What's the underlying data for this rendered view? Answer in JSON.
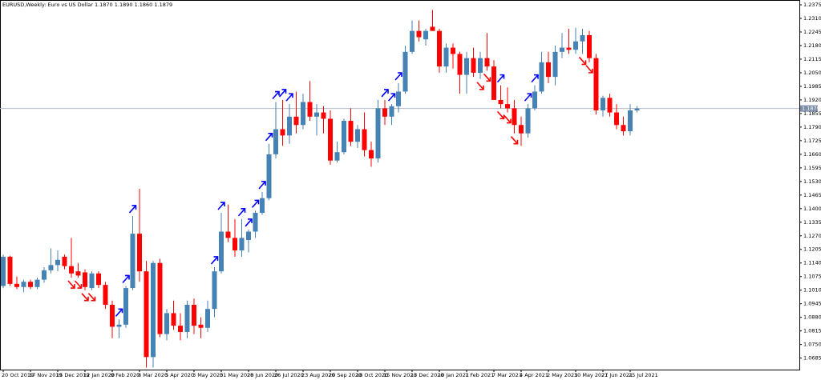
{
  "chart_data": {
    "type": "candlestick",
    "title": "EURUSD,Weekly: Euro vs US Dollar 1.1870 1.1890 1.1860 1.1879",
    "categories": [
      "20 Oct 2019",
      null,
      null,
      null,
      "17 Nov 2019",
      null,
      null,
      null,
      "15 Dec 2019",
      null,
      null,
      null,
      "12 Jan 2020",
      null,
      null,
      null,
      "9 Feb 2020",
      null,
      null,
      null,
      "8 Mar 2020",
      null,
      null,
      null,
      "5 Apr 2020",
      null,
      null,
      null,
      "3 May 2020",
      null,
      null,
      null,
      "31 May 2020",
      null,
      null,
      null,
      "28 Jun 2020",
      null,
      null,
      null,
      "26 Jul 2020",
      null,
      null,
      null,
      "23 Aug 2020",
      null,
      null,
      null,
      "20 Sep 2020",
      null,
      null,
      null,
      "18 Oct 2020",
      null,
      null,
      null,
      "15 Nov 2020",
      null,
      null,
      null,
      "13 Dec 2020",
      null,
      null,
      null,
      "10 Jan 2021",
      null,
      null,
      null,
      "7 Feb 2021",
      null,
      null,
      null,
      "7 Mar 2021",
      null,
      null,
      null,
      "4 Apr 2021",
      null,
      null,
      null,
      "2 May 2021",
      null,
      null,
      null,
      "30 May 2021",
      null,
      null,
      null,
      "27 Jun 2021",
      null,
      null,
      null,
      "25 Jul 2021",
      null
    ],
    "open": [
      1.103,
      1.117,
      1.104,
      1.1025,
      1.105,
      1.1025,
      1.106,
      1.1105,
      1.113,
      1.117,
      1.1125,
      1.11,
      1.1095,
      1.102,
      1.109,
      1.1035,
      1.094,
      1.0835,
      1.0845,
      1.102,
      1.128,
      1.11,
      1.069,
      1.114,
      1.08,
      1.09,
      1.084,
      1.081,
      1.094,
      1.0845,
      1.083,
      1.092,
      1.11,
      1.129,
      1.126,
      1.12,
      1.125,
      1.129,
      1.138,
      1.145,
      1.166,
      1.178,
      1.175,
      1.184,
      1.18,
      1.191,
      1.184,
      1.186,
      1.183,
      1.163,
      1.167,
      1.182,
      1.172,
      1.178,
      1.168,
      1.164,
      1.188,
      1.184,
      1.189,
      1.196,
      1.215,
      1.225,
      1.221,
      1.227,
      1.225,
      1.208,
      1.217,
      1.214,
      1.204,
      1.212,
      1.205,
      1.212,
      1.208,
      1.192,
      1.19,
      1.188,
      1.18,
      1.176,
      1.188,
      1.196,
      1.21,
      1.203,
      1.215,
      1.217,
      1.216,
      1.22,
      1.223,
      1.212,
      1.187,
      1.193,
      1.186,
      1.18,
      1.177,
      1.187
    ],
    "high": [
      1.118,
      1.1175,
      1.1075,
      1.106,
      1.106,
      1.107,
      1.112,
      1.121,
      1.12,
      1.118,
      1.126,
      1.114,
      1.111,
      1.11,
      1.11,
      1.105,
      1.096,
      1.087,
      1.103,
      1.1365,
      1.1495,
      1.115,
      1.115,
      1.116,
      1.092,
      1.096,
      1.09,
      1.096,
      1.097,
      1.088,
      1.096,
      1.112,
      1.138,
      1.142,
      1.135,
      1.135,
      1.13,
      1.139,
      1.148,
      1.171,
      1.191,
      1.192,
      1.19,
      1.196,
      1.195,
      1.201,
      1.19,
      1.189,
      1.187,
      1.172,
      1.183,
      1.188,
      1.18,
      1.186,
      1.172,
      1.192,
      1.192,
      1.19,
      1.2,
      1.218,
      1.23,
      1.23,
      1.226,
      1.235,
      1.226,
      1.219,
      1.219,
      1.215,
      1.215,
      1.217,
      1.215,
      1.224,
      1.211,
      1.199,
      1.198,
      1.192,
      1.184,
      1.19,
      1.199,
      1.215,
      1.215,
      1.218,
      1.224,
      1.226,
      1.2265,
      1.226,
      1.225,
      1.214,
      1.194,
      1.195,
      1.19,
      1.184,
      1.19,
      1.189
    ],
    "low": [
      1.102,
      1.103,
      1.1015,
      1.1,
      1.1015,
      1.1015,
      1.1045,
      1.109,
      1.11,
      1.111,
      1.107,
      1.107,
      1.101,
      1.101,
      1.102,
      1.092,
      1.078,
      1.078,
      1.083,
      1.101,
      1.105,
      1.064,
      1.064,
      1.0785,
      1.077,
      1.082,
      1.077,
      1.078,
      1.08,
      1.078,
      1.081,
      1.088,
      1.109,
      1.124,
      1.117,
      1.117,
      1.119,
      1.126,
      1.137,
      1.144,
      1.164,
      1.17,
      1.171,
      1.176,
      1.178,
      1.182,
      1.175,
      1.176,
      1.161,
      1.162,
      1.166,
      1.17,
      1.169,
      1.165,
      1.16,
      1.162,
      1.18,
      1.18,
      1.186,
      1.195,
      1.214,
      1.22,
      1.218,
      1.225,
      1.205,
      1.205,
      1.207,
      1.195,
      1.195,
      1.203,
      1.202,
      1.206,
      1.192,
      1.188,
      1.186,
      1.176,
      1.17,
      1.174,
      1.187,
      1.195,
      1.2,
      1.199,
      1.212,
      1.214,
      1.214,
      1.214,
      1.21,
      1.185,
      1.184,
      1.184,
      1.178,
      1.175,
      1.175,
      1.186
    ],
    "close": [
      1.117,
      1.104,
      1.1025,
      1.105,
      1.1025,
      1.106,
      1.1105,
      1.113,
      1.1155,
      1.1125,
      1.109,
      1.108,
      1.1025,
      1.109,
      1.1035,
      1.094,
      1.0835,
      1.0845,
      1.102,
      1.128,
      1.11,
      1.069,
      1.114,
      1.08,
      1.09,
      1.084,
      1.081,
      1.094,
      1.084,
      1.083,
      1.092,
      1.11,
      1.129,
      1.126,
      1.12,
      1.126,
      1.129,
      1.138,
      1.145,
      1.166,
      1.178,
      1.175,
      1.184,
      1.18,
      1.191,
      1.184,
      1.186,
      1.183,
      1.163,
      1.167,
      1.182,
      1.172,
      1.178,
      1.168,
      1.164,
      1.188,
      1.184,
      1.189,
      1.196,
      1.215,
      1.225,
      1.222,
      1.225,
      1.225,
      1.208,
      1.217,
      1.214,
      1.204,
      1.212,
      1.205,
      1.212,
      1.208,
      1.192,
      1.19,
      1.188,
      1.18,
      1.176,
      1.188,
      1.196,
      1.21,
      1.203,
      1.215,
      1.217,
      1.216,
      1.22,
      1.223,
      1.212,
      1.187,
      1.193,
      1.186,
      1.18,
      1.177,
      1.187,
      1.1879
    ],
    "up_color": "#4682b4",
    "down_color": "#ff0000",
    "up_arrows": [
      17,
      18,
      19,
      31,
      32,
      35,
      36,
      37,
      38,
      39,
      40,
      41,
      42,
      56,
      57,
      58,
      73,
      77,
      78
    ],
    "down_arrows": [
      10,
      11,
      12,
      13,
      70,
      71,
      73,
      74,
      75,
      85,
      86
    ],
    "up_arrow_color": "#0000ff",
    "down_arrow_color": "#ff0000",
    "current_price": 1.1879,
    "current_price_color": "#7d8ea8",
    "ylim": [
      1.063,
      1.2398
    ],
    "yticks": [
      1.2375,
      {
        "value": 1.231,
        "label": "1.2310"
      },
      1.2245,
      {
        "value": 1.218,
        "label": "1.2180"
      },
      1.2115,
      {
        "value": 1.205,
        "label": "1.2050"
      },
      1.1985,
      {
        "value": 1.192,
        "label": "1.1920"
      },
      1.1855,
      {
        "value": 1.179,
        "label": "1.1790"
      },
      1.1725,
      {
        "value": 1.166,
        "label": "1.1660"
      },
      1.1595,
      {
        "value": 1.153,
        "label": "1.1530"
      },
      1.1465,
      {
        "value": 1.14,
        "label": "1.1400"
      },
      1.1335,
      {
        "value": 1.127,
        "label": "1.1270"
      },
      1.1205,
      {
        "value": 1.114,
        "label": "1.1140"
      },
      1.1075,
      {
        "value": 1.101,
        "label": "1.1010"
      },
      1.0945,
      {
        "value": 1.088,
        "label": "1.0880"
      },
      1.0815,
      {
        "value": 1.075,
        "label": "1.0750"
      },
      1.0685
    ],
    "grid": false
  }
}
